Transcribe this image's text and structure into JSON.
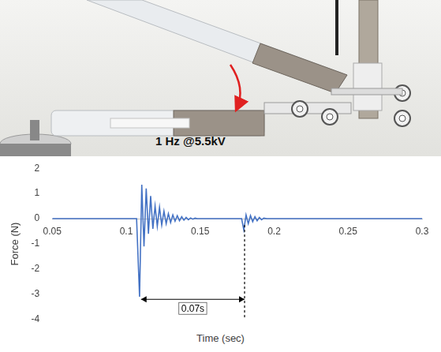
{
  "photo": {
    "caption": "1 Hz @5.5kV"
  },
  "chart_data": {
    "type": "line",
    "x_label": "Time (sec)",
    "y_label": "Force (N)",
    "color": "#4472c4",
    "grid": false,
    "x": [
      0.05,
      0.107,
      0.109,
      0.1105,
      0.112,
      0.1135,
      0.115,
      0.1165,
      0.118,
      0.1195,
      0.121,
      0.1225,
      0.124,
      0.1255,
      0.127,
      0.1285,
      0.13,
      0.1315,
      0.133,
      0.1345,
      0.136,
      0.1375,
      0.139,
      0.1405,
      0.142,
      0.1435,
      0.145,
      0.1465,
      0.148,
      0.178,
      0.1795,
      0.181,
      0.1825,
      0.184,
      0.1855,
      0.187,
      0.1885,
      0.19,
      0.1915,
      0.193,
      0.195,
      0.3
    ],
    "values": [
      0,
      0,
      -3.1,
      1.35,
      -1.1,
      1.2,
      -0.6,
      0.9,
      -0.4,
      0.5,
      -0.3,
      0.45,
      -0.25,
      0.3,
      -0.2,
      0.2,
      -0.15,
      0.15,
      -0.1,
      0.12,
      -0.08,
      0.08,
      -0.06,
      0.05,
      -0.04,
      0.03,
      -0.02,
      0.02,
      0,
      0,
      -0.45,
      0.15,
      -0.2,
      0.12,
      -0.12,
      0.08,
      -0.08,
      0.05,
      -0.04,
      0.02,
      0,
      0
    ],
    "xlim": [
      0.05,
      0.3
    ],
    "xticks": [
      0.05,
      0.1,
      0.15,
      0.2,
      0.25,
      0.3
    ],
    "ylim": [
      -4,
      2
    ],
    "yticks": [
      -4,
      -3,
      -2,
      -1,
      0,
      1,
      2
    ],
    "annotations": [
      {
        "text": "0.07s",
        "from": 0.11,
        "to": 0.18,
        "y": -3.2
      }
    ]
  }
}
